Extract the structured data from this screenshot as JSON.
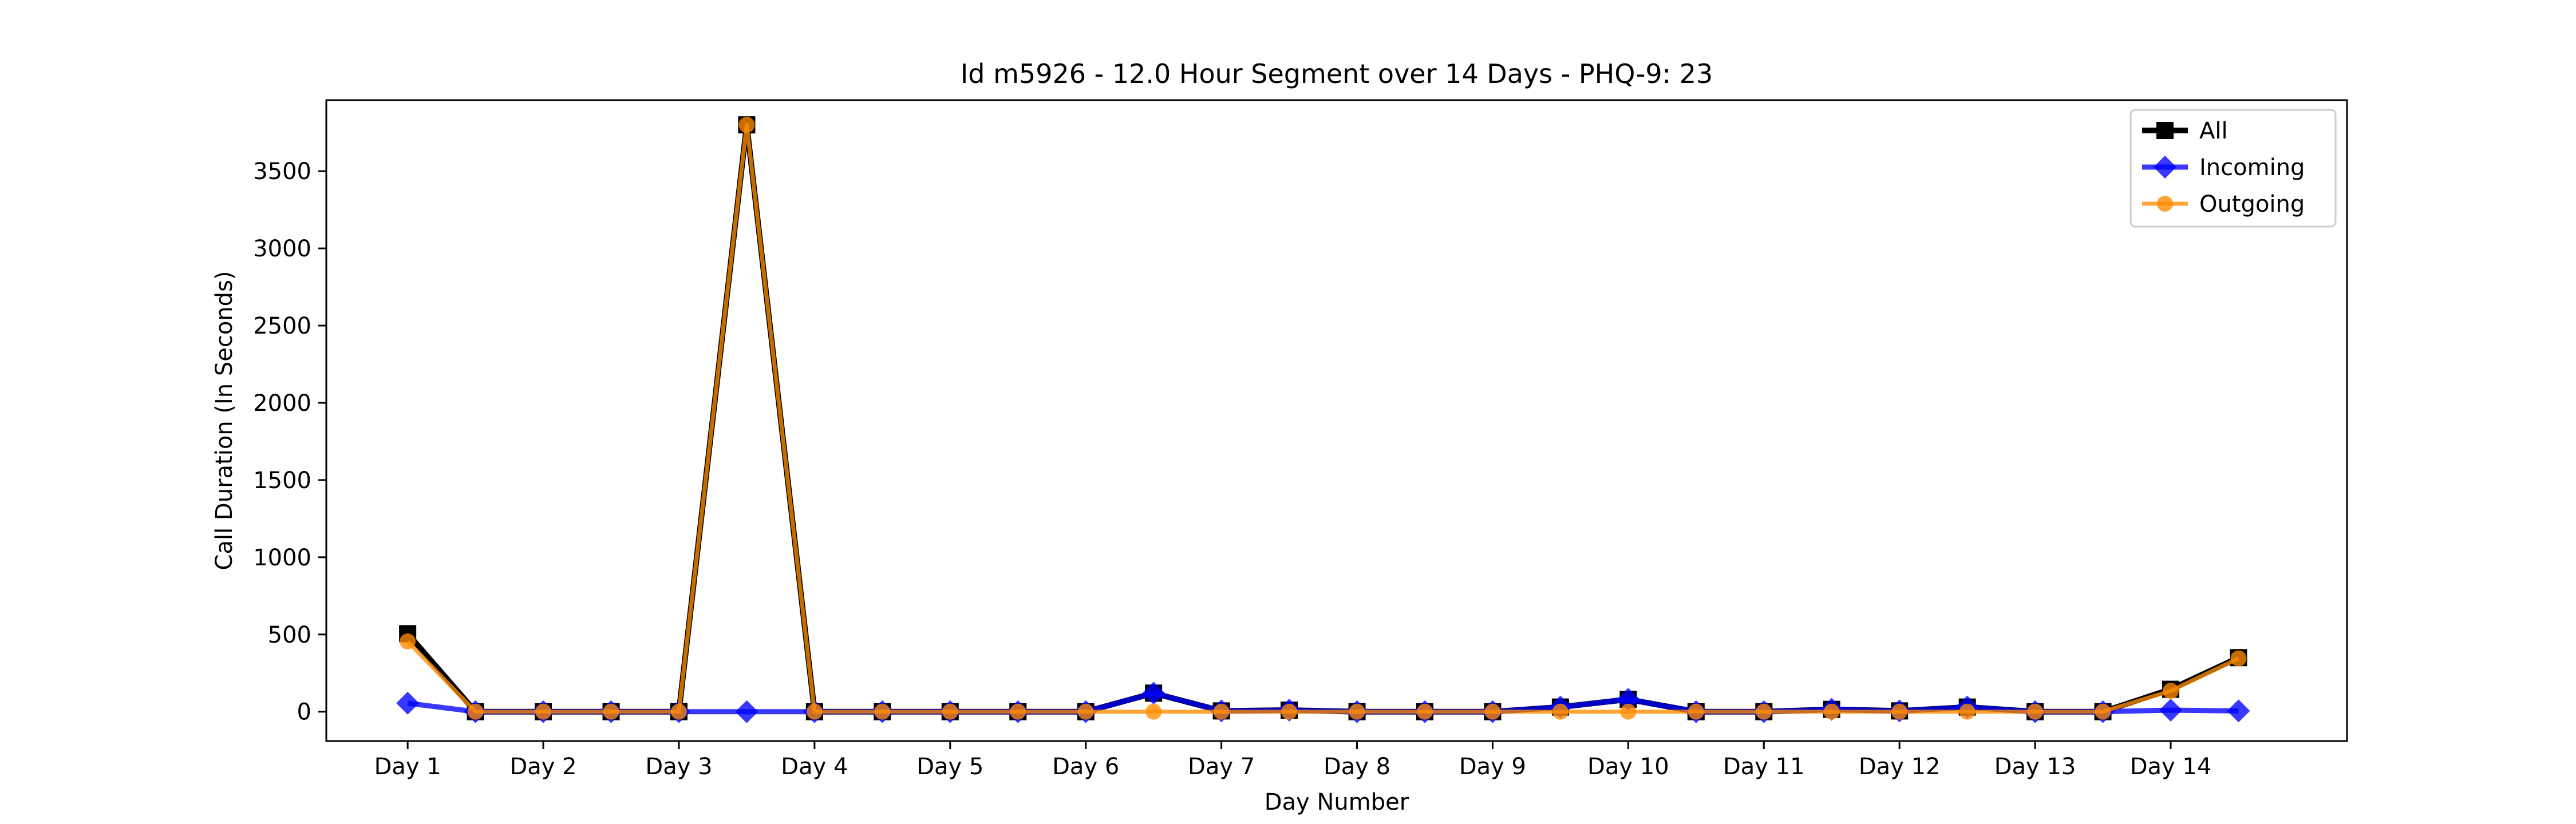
{
  "chart_data": {
    "type": "line",
    "title": "Id m5926 - 12.0 Hour Segment over 14 Days - PHQ-9: 23",
    "xlabel": "Day Number",
    "ylabel": "Call Duration (In Seconds)",
    "categories": [
      "Day 1",
      "Day 2",
      "Day 3",
      "Day 4",
      "Day 5",
      "Day 6",
      "Day 7",
      "Day 8",
      "Day 9",
      "Day 10",
      "Day 11",
      "Day 12",
      "Day 13",
      "Day 14"
    ],
    "x": [
      1,
      1.5,
      2,
      2.5,
      3,
      3.5,
      4,
      4.5,
      5,
      5.5,
      6,
      6.5,
      7,
      7.5,
      8,
      8.5,
      9,
      9.5,
      10,
      10.5,
      11,
      11.5,
      12,
      12.5,
      13,
      13.5,
      14,
      14.5
    ],
    "ylim": [
      -190,
      3960
    ],
    "xlim": [
      0.4,
      15.3
    ],
    "yticks": [
      0,
      500,
      1000,
      1500,
      2000,
      2500,
      3000,
      3500
    ],
    "grid": false,
    "legend": "top-right",
    "series": [
      {
        "name": "All",
        "color": "#000000",
        "marker": "square",
        "values": [
          505,
          0,
          0,
          0,
          0,
          3800,
          0,
          0,
          0,
          0,
          0,
          120,
          5,
          10,
          0,
          0,
          0,
          30,
          80,
          0,
          0,
          15,
          5,
          30,
          0,
          0,
          145,
          350
        ]
      },
      {
        "name": "Incoming",
        "color": "#0000ff",
        "marker": "diamond",
        "values": [
          55,
          0,
          0,
          0,
          0,
          0,
          0,
          0,
          0,
          0,
          0,
          120,
          5,
          10,
          0,
          0,
          0,
          30,
          80,
          0,
          0,
          15,
          5,
          30,
          0,
          0,
          10,
          5
        ]
      },
      {
        "name": "Outgoing",
        "color": "#ff8c00",
        "marker": "circle",
        "values": [
          455,
          0,
          0,
          0,
          0,
          3800,
          0,
          0,
          0,
          0,
          0,
          0,
          0,
          0,
          0,
          0,
          0,
          0,
          0,
          0,
          0,
          0,
          0,
          0,
          0,
          0,
          135,
          345
        ]
      }
    ]
  }
}
